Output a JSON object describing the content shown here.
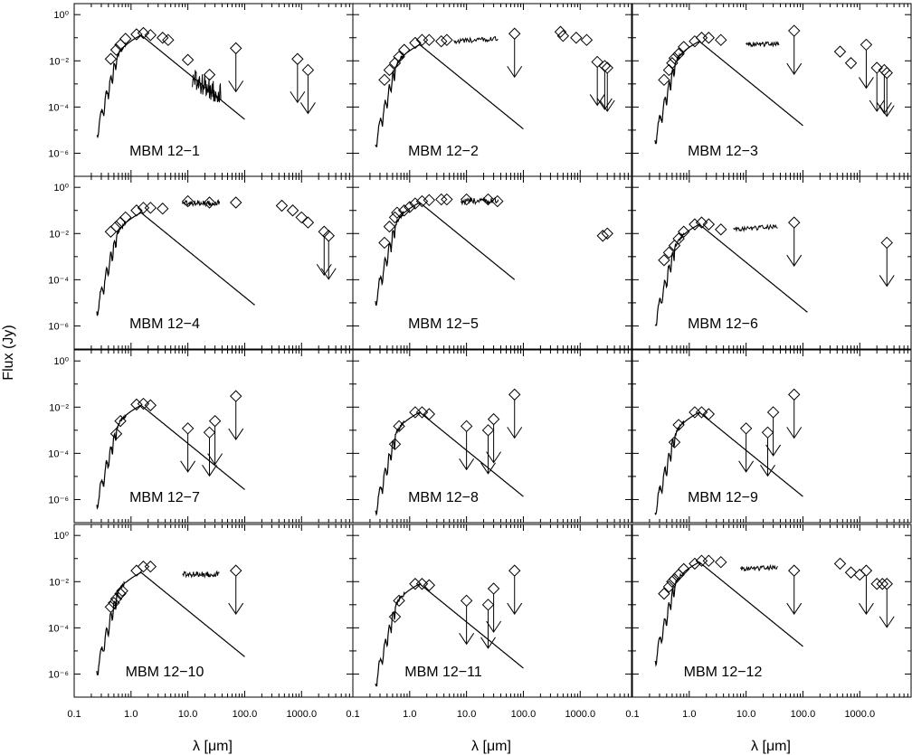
{
  "chart_data": {
    "type": "scatter",
    "y_axis_title": "Flux (Jy)",
    "x_axis_title": "λ [μm]",
    "xscale": "log",
    "yscale": "log",
    "xlim": [
      0.1,
      8000
    ],
    "ylim": [
      1e-07,
      3
    ],
    "x_tick_labels": [
      "0.1",
      "1.0",
      "10.0",
      "100.0",
      "1000.0"
    ],
    "x_tick_values": [
      0.1,
      1,
      10,
      100,
      1000
    ],
    "y_tick_labels": [
      "10⁰",
      "10⁻²",
      "10⁻⁴",
      "10⁻⁶"
    ],
    "y_tick_values": [
      1,
      0.01,
      0.0001,
      1e-06
    ],
    "panels": [
      {
        "label": "MBM 12−1",
        "model_scale": 0.13,
        "model_max_wl": 100,
        "photometry": [
          [
            0.44,
            0.012
          ],
          [
            0.55,
            0.03
          ],
          [
            0.65,
            0.05
          ],
          [
            0.8,
            0.09
          ],
          [
            1.25,
            0.14
          ],
          [
            1.65,
            0.16
          ],
          [
            2.2,
            0.13
          ],
          [
            3.6,
            0.1
          ],
          [
            4.5,
            0.08
          ],
          [
            10,
            0.011
          ],
          [
            24,
            0.0025
          ]
        ],
        "upper_limits": [
          [
            70,
            0.035
          ],
          [
            850,
            0.012
          ],
          [
            1300,
            0.004
          ]
        ],
        "spectra": [
          {
            "start": 12,
            "end": 38,
            "level": 0.0015,
            "slope": -1.2,
            "noise": 1.0
          }
        ]
      },
      {
        "label": "MBM 12−2",
        "model_scale": 0.05,
        "model_max_wl": 100,
        "photometry": [
          [
            0.36,
            0.0015
          ],
          [
            0.44,
            0.004
          ],
          [
            0.55,
            0.008
          ],
          [
            0.65,
            0.015
          ],
          [
            0.8,
            0.03
          ],
          [
            1.25,
            0.06
          ],
          [
            1.65,
            0.08
          ],
          [
            2.2,
            0.08
          ],
          [
            3.6,
            0.07
          ],
          [
            4.5,
            0.08
          ],
          [
            450,
            0.18
          ],
          [
            500,
            0.12
          ],
          [
            850,
            0.1
          ],
          [
            1300,
            0.08
          ]
        ],
        "upper_limits": [
          [
            70,
            0.15
          ],
          [
            2000,
            0.009
          ],
          [
            2700,
            0.006
          ],
          [
            3000,
            0.005
          ]
        ],
        "spectra": [
          {
            "start": 6,
            "end": 36,
            "level": 0.07,
            "slope": 0.15,
            "noise": 0.2
          }
        ]
      },
      {
        "label": "MBM 12−3",
        "model_scale": 0.07,
        "model_max_wl": 100,
        "photometry": [
          [
            0.36,
            0.0015
          ],
          [
            0.44,
            0.004
          ],
          [
            0.5,
            0.008
          ],
          [
            0.55,
            0.013
          ],
          [
            0.65,
            0.02
          ],
          [
            0.8,
            0.04
          ],
          [
            1.25,
            0.07
          ],
          [
            1.65,
            0.1
          ],
          [
            2.2,
            0.1
          ],
          [
            3.6,
            0.08
          ],
          [
            450,
            0.025
          ],
          [
            700,
            0.008
          ]
        ],
        "upper_limits": [
          [
            70,
            0.2
          ],
          [
            1300,
            0.05
          ],
          [
            2000,
            0.005
          ],
          [
            2700,
            0.004
          ],
          [
            3000,
            0.003
          ]
        ],
        "spectra": [
          {
            "start": 10,
            "end": 38,
            "level": 0.05,
            "slope": 0.05,
            "noise": 0.2
          }
        ]
      },
      {
        "label": "MBM 12−4",
        "model_scale": 0.08,
        "model_max_wl": 150,
        "photometry": [
          [
            0.44,
            0.012
          ],
          [
            0.55,
            0.02
          ],
          [
            0.65,
            0.03
          ],
          [
            0.8,
            0.05
          ],
          [
            1.25,
            0.1
          ],
          [
            1.65,
            0.13
          ],
          [
            2.2,
            0.13
          ],
          [
            3.6,
            0.12
          ],
          [
            10,
            0.25
          ],
          [
            24,
            0.22
          ],
          [
            70,
            0.22
          ],
          [
            450,
            0.16
          ],
          [
            700,
            0.1
          ],
          [
            1000,
            0.05
          ],
          [
            1300,
            0.03
          ]
        ],
        "upper_limits": [
          [
            2500,
            0.012
          ],
          [
            3000,
            0.008
          ]
        ],
        "spectra": [
          {
            "start": 8,
            "end": 36,
            "level": 0.2,
            "slope": 0.05,
            "noise": 0.25
          }
        ]
      },
      {
        "label": "MBM 12−5",
        "model_scale": 0.22,
        "model_max_wl": 70,
        "photometry": [
          [
            0.36,
            0.004
          ],
          [
            0.44,
            0.02
          ],
          [
            0.55,
            0.05
          ],
          [
            0.6,
            0.08
          ],
          [
            0.8,
            0.1
          ],
          [
            1.0,
            0.14
          ],
          [
            1.25,
            0.2
          ],
          [
            1.65,
            0.25
          ],
          [
            2.2,
            0.28
          ],
          [
            3.6,
            0.3
          ],
          [
            4.5,
            0.3
          ],
          [
            10,
            0.3
          ],
          [
            24,
            0.3
          ],
          [
            35,
            0.25
          ],
          [
            2500,
            0.008
          ],
          [
            3000,
            0.01
          ]
        ],
        "upper_limits": [],
        "spectra": [
          {
            "start": 8,
            "end": 36,
            "level": 0.25,
            "slope": 0.05,
            "noise": 0.25
          }
        ]
      },
      {
        "label": "MBM 12−6",
        "model_scale": 0.025,
        "model_max_wl": 120,
        "photometry": [
          [
            0.36,
            0.0007
          ],
          [
            0.44,
            0.0015
          ],
          [
            0.55,
            0.003
          ],
          [
            0.65,
            0.006
          ],
          [
            0.8,
            0.012
          ],
          [
            1.25,
            0.025
          ],
          [
            1.65,
            0.03
          ],
          [
            2.2,
            0.025
          ],
          [
            3.6,
            0.015
          ]
        ],
        "upper_limits": [
          [
            70,
            0.03
          ],
          [
            3000,
            0.004
          ]
        ],
        "spectra": [
          {
            "start": 6,
            "end": 36,
            "level": 0.015,
            "slope": 0.15,
            "noise": 0.2
          }
        ]
      },
      {
        "label": "MBM 12−7",
        "model_scale": 0.012,
        "model_max_wl": 100,
        "photometry": [
          [
            0.55,
            0.0007
          ],
          [
            0.65,
            0.0025
          ],
          [
            1.25,
            0.013
          ],
          [
            1.65,
            0.014
          ],
          [
            2.2,
            0.012
          ]
        ],
        "upper_limits": [
          [
            10,
            0.0012
          ],
          [
            24,
            0.0008
          ],
          [
            30,
            0.0025
          ],
          [
            70,
            0.03
          ]
        ],
        "spectra": []
      },
      {
        "label": "MBM 12−8",
        "model_scale": 0.006,
        "model_max_wl": 100,
        "photometry": [
          [
            0.55,
            0.00025
          ],
          [
            0.65,
            0.0015
          ],
          [
            1.25,
            0.006
          ],
          [
            1.65,
            0.006
          ],
          [
            2.2,
            0.005
          ]
        ],
        "upper_limits": [
          [
            10,
            0.0015
          ],
          [
            24,
            0.001
          ],
          [
            30,
            0.003
          ],
          [
            70,
            0.035
          ]
        ],
        "spectra": []
      },
      {
        "label": "MBM 12−9",
        "model_scale": 0.006,
        "model_max_wl": 100,
        "photometry": [
          [
            0.55,
            0.0003
          ],
          [
            0.65,
            0.0017
          ],
          [
            1.25,
            0.006
          ],
          [
            1.65,
            0.006
          ],
          [
            2.2,
            0.005
          ]
        ],
        "upper_limits": [
          [
            10,
            0.0012
          ],
          [
            24,
            0.0008
          ],
          [
            30,
            0.006
          ],
          [
            70,
            0.035
          ]
        ],
        "spectra": []
      },
      {
        "label": "MBM 12−10",
        "model_scale": 0.025,
        "model_max_wl": 100,
        "photometry": [
          [
            0.44,
            0.0008
          ],
          [
            0.5,
            0.0012
          ],
          [
            0.55,
            0.0018
          ],
          [
            0.65,
            0.003
          ],
          [
            0.7,
            0.004
          ],
          [
            1.25,
            0.03
          ],
          [
            1.65,
            0.045
          ],
          [
            2.2,
            0.045
          ]
        ],
        "upper_limits": [
          [
            70,
            0.03
          ]
        ],
        "spectra": [
          {
            "start": 8,
            "end": 36,
            "level": 0.02,
            "slope": 0.05,
            "noise": 0.25
          }
        ]
      },
      {
        "label": "MBM 12−11",
        "model_scale": 0.008,
        "model_max_wl": 100,
        "photometry": [
          [
            0.55,
            0.0003
          ],
          [
            0.65,
            0.0015
          ],
          [
            1.25,
            0.008
          ],
          [
            1.65,
            0.008
          ],
          [
            2.2,
            0.007
          ]
        ],
        "upper_limits": [
          [
            10,
            0.0015
          ],
          [
            24,
            0.001
          ],
          [
            30,
            0.005
          ],
          [
            70,
            0.03
          ]
        ],
        "spectra": []
      },
      {
        "label": "MBM 12−12",
        "model_scale": 0.07,
        "model_max_wl": 100,
        "photometry": [
          [
            0.36,
            0.003
          ],
          [
            0.44,
            0.006
          ],
          [
            0.5,
            0.01
          ],
          [
            0.55,
            0.013
          ],
          [
            0.65,
            0.02
          ],
          [
            0.8,
            0.035
          ],
          [
            1.25,
            0.06
          ],
          [
            1.65,
            0.08
          ],
          [
            2.2,
            0.08
          ],
          [
            3.6,
            0.07
          ],
          [
            450,
            0.06
          ],
          [
            700,
            0.025
          ],
          [
            1000,
            0.02
          ],
          [
            2000,
            0.008
          ],
          [
            2500,
            0.008
          ]
        ],
        "upper_limits": [
          [
            70,
            0.03
          ],
          [
            1300,
            0.03
          ],
          [
            3000,
            0.008
          ]
        ],
        "spectra": [
          {
            "start": 8,
            "end": 36,
            "level": 0.035,
            "slope": 0.1,
            "noise": 0.2
          }
        ]
      }
    ]
  }
}
